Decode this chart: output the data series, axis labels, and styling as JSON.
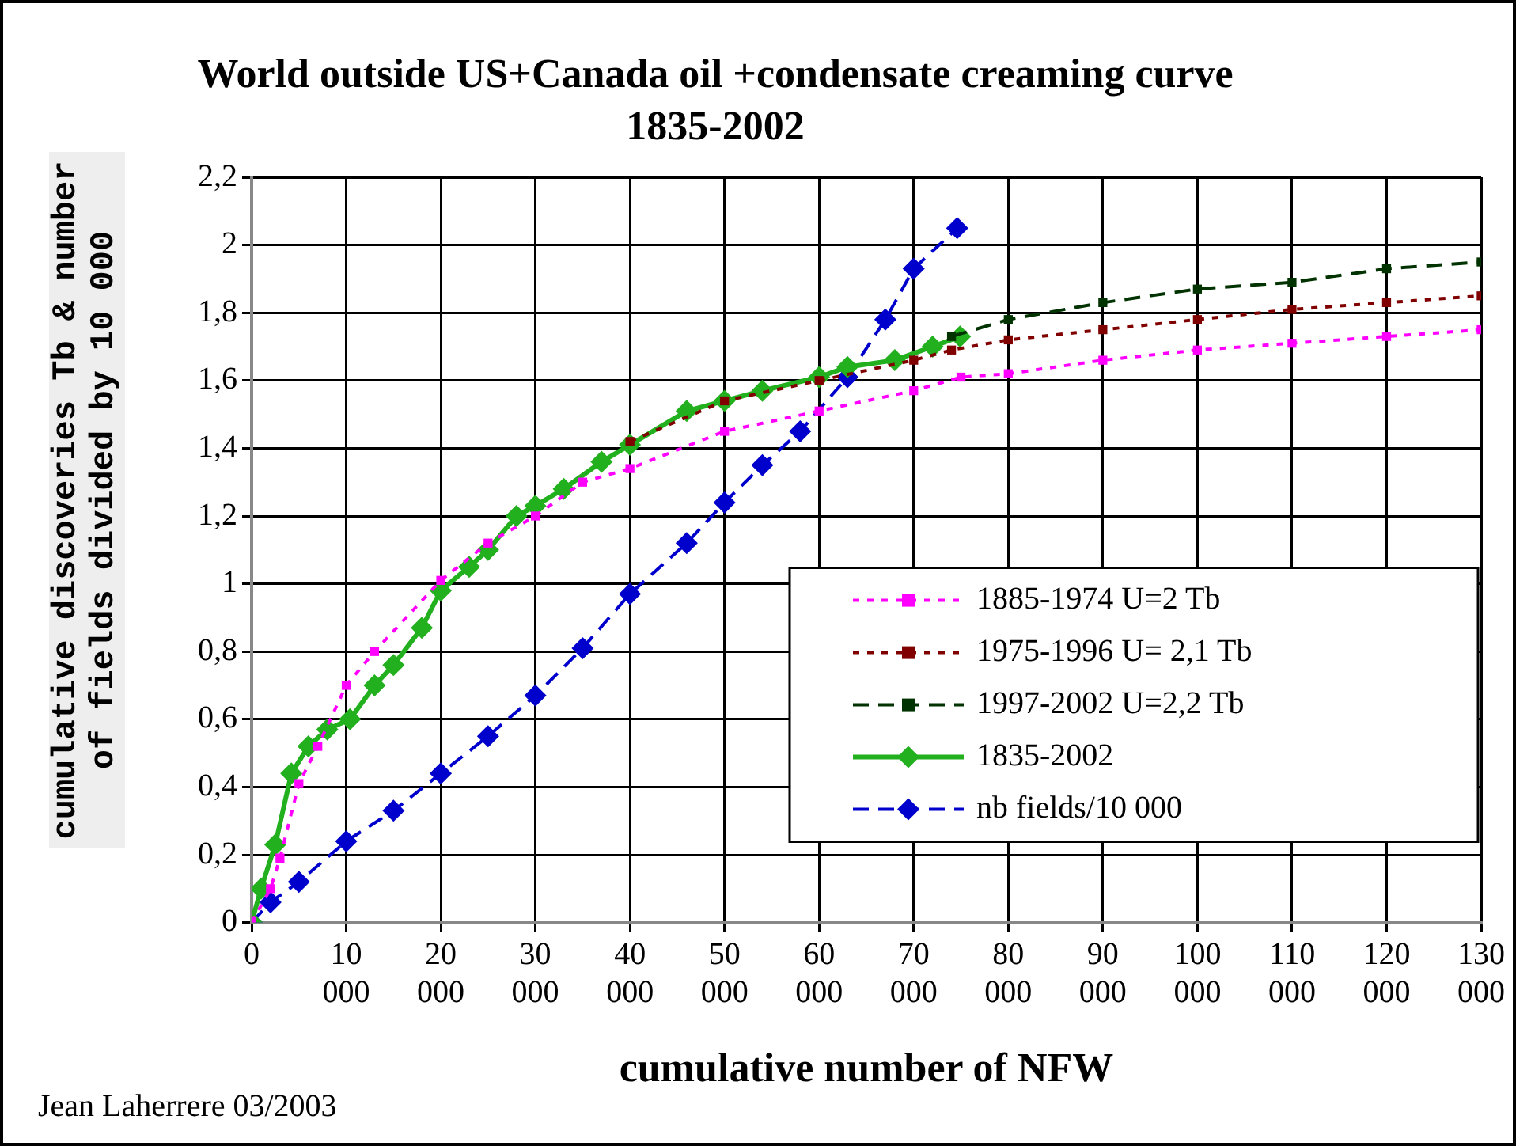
{
  "chart_data": {
    "type": "line",
    "title": "World outside US+Canada oil +condensate creaming curve 1835-2002",
    "xlabel": "cumulative number of NFW",
    "ylabel": "cumulative discoveries Tb & number of fields divided by 10 000",
    "xlim": [
      0,
      130000
    ],
    "xticks": [
      0,
      {
        "value": 10000,
        "label": "10 000"
      },
      {
        "value": 20000,
        "label": "20 000"
      },
      {
        "value": 30000,
        "label": "30 000"
      },
      {
        "value": 40000,
        "label": "40 000"
      },
      {
        "value": 50000,
        "label": "50 000"
      },
      {
        "value": 60000,
        "label": "60 000"
      },
      {
        "value": 70000,
        "label": "70 000"
      },
      {
        "value": 80000,
        "label": "80 000"
      },
      {
        "value": 90000,
        "label": "90 000"
      },
      {
        "value": 100000,
        "label": "100 000"
      },
      {
        "value": 110000,
        "label": "110 000"
      },
      {
        "value": 120000,
        "label": "120 000"
      },
      {
        "value": 130000,
        "label": "130 000"
      }
    ],
    "ylim": [
      0,
      2.2
    ],
    "yticks": [
      0,
      {
        "value": 0.2,
        "label": "0,2"
      },
      {
        "value": 0.4,
        "label": "0,4"
      },
      {
        "value": 0.6,
        "label": "0,6"
      },
      {
        "value": 0.8,
        "label": "0,8"
      },
      1,
      {
        "value": 1.2,
        "label": "1,2"
      },
      {
        "value": 1.4,
        "label": "1,4"
      },
      {
        "value": 1.6,
        "label": "1,6"
      },
      {
        "value": 1.8,
        "label": "1,8"
      },
      2,
      {
        "value": 2.2,
        "label": "2,2"
      }
    ],
    "grid": true,
    "legend": "bottom right",
    "series": [
      {
        "name": "1885-1974 U=2 Tb",
        "color": "#ff00ff",
        "marker": "square",
        "line_style": "dotted",
        "x": [
          0,
          2000,
          3000,
          5000,
          7000,
          10000,
          13000,
          20000,
          25000,
          30000,
          35000,
          40000,
          50000,
          60000,
          70000,
          75000,
          80000,
          90000,
          100000,
          110000,
          120000,
          130000
        ],
        "values": [
          0,
          0.1,
          0.19,
          0.41,
          0.52,
          0.7,
          0.8,
          1.01,
          1.12,
          1.2,
          1.3,
          1.34,
          1.45,
          1.51,
          1.57,
          1.61,
          1.62,
          1.66,
          1.69,
          1.71,
          1.73,
          1.75
        ]
      },
      {
        "name": "1975-1996 U= 2,1 Tb",
        "color": "#800000",
        "marker": "square",
        "line_style": "dotted",
        "x": [
          40000,
          50000,
          60000,
          70000,
          74000,
          80000,
          90000,
          100000,
          110000,
          120000,
          130000
        ],
        "values": [
          1.42,
          1.54,
          1.6,
          1.66,
          1.69,
          1.72,
          1.75,
          1.78,
          1.81,
          1.83,
          1.85
        ]
      },
      {
        "name": "1997-2002 U=2,2 Tb",
        "color": "#003300",
        "marker": "square",
        "line_style": "dashed",
        "x": [
          74000,
          80000,
          90000,
          100000,
          110000,
          120000,
          130000
        ],
        "values": [
          1.73,
          1.78,
          1.83,
          1.87,
          1.89,
          1.93,
          1.95
        ]
      },
      {
        "name": "1835-2002",
        "color": "#22b01e",
        "marker": "diamond",
        "line_style": "solid",
        "x": [
          0,
          1000,
          2500,
          4200,
          6000,
          8000,
          10400,
          13000,
          15000,
          18000,
          20000,
          23000,
          25000,
          28000,
          30000,
          33000,
          37000,
          40000,
          46000,
          50000,
          54000,
          60000,
          63000,
          68000,
          72000,
          74900
        ],
        "values": [
          0,
          0.1,
          0.23,
          0.44,
          0.52,
          0.57,
          0.6,
          0.7,
          0.76,
          0.87,
          0.98,
          1.05,
          1.1,
          1.2,
          1.23,
          1.28,
          1.36,
          1.41,
          1.51,
          1.54,
          1.57,
          1.61,
          1.64,
          1.66,
          1.7,
          1.73
        ]
      },
      {
        "name": "nb fields/10 000",
        "color": "#0000cc",
        "marker": "diamond",
        "line_style": "dashed",
        "x": [
          0,
          2000,
          5000,
          10000,
          15000,
          20000,
          25000,
          30000,
          35000,
          40000,
          46000,
          50000,
          54000,
          58000,
          63000,
          67000,
          70000,
          74600
        ],
        "values": [
          0,
          0.06,
          0.12,
          0.24,
          0.33,
          0.44,
          0.55,
          0.67,
          0.81,
          0.97,
          1.12,
          1.24,
          1.35,
          1.45,
          1.61,
          1.78,
          1.93,
          2.05
        ]
      }
    ],
    "annotations": [
      "Jean Laherrere 03/2003"
    ]
  }
}
